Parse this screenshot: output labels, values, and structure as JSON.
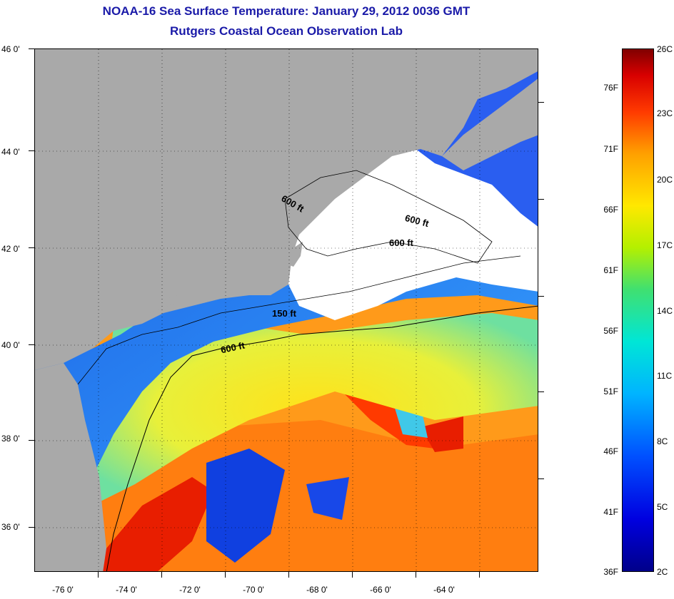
{
  "header": {
    "title": "NOAA-16 Sea Surface Temperature:  January 29, 2012 0036 GMT",
    "subtitle": "Rutgers Coastal Ocean Observation Lab"
  },
  "map": {
    "latitude_labels": [
      "46 0'",
      "44 0'",
      "42 0'",
      "40 0'",
      "38 0'",
      "36 0'"
    ],
    "longitude_labels": [
      "-76 0'",
      "-74 0'",
      "-72 0'",
      "-70 0'",
      "-68 0'",
      "-66 0'",
      "-64 0'"
    ],
    "contour_labels": [
      "600 ft",
      "600 ft",
      "600 ft",
      "150 ft",
      "600 ft"
    ],
    "colors": {
      "land": "#a9a9a9",
      "cloud": "#ffffff",
      "cold_shelf": "#1e64f0",
      "warm_gulf_stream": "#e81e00"
    }
  },
  "colorbar": {
    "fahrenheit_labels": [
      "76F",
      "71F",
      "66F",
      "61F",
      "56F",
      "51F",
      "46F",
      "41F",
      "36F"
    ],
    "celsius_labels": [
      "26C",
      "23C",
      "20C",
      "17C",
      "14C",
      "11C",
      "8C",
      "5C",
      "2C"
    ]
  }
}
